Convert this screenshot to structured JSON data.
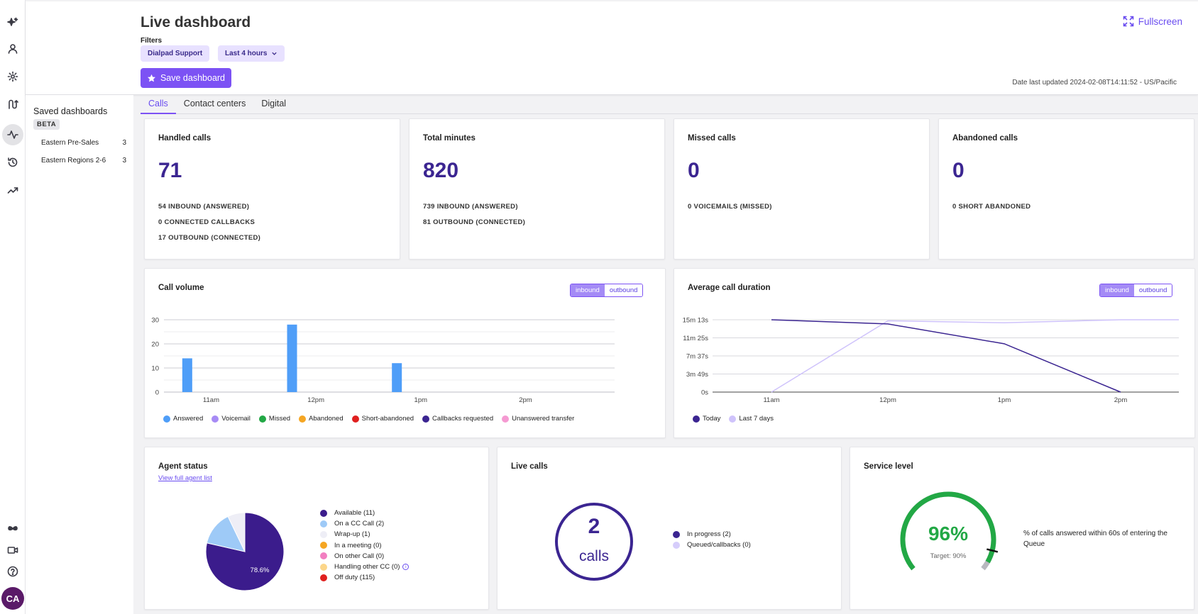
{
  "header": {
    "title": "Live dashboard",
    "filters_label": "Filters",
    "filters": [
      "Dialpad Support",
      "Last 4 hours"
    ],
    "save_label": "Save dashboard",
    "fullscreen_label": "Fullscreen",
    "updated": "Date last updated 2024-02-08T14:11:52 - US/Pacific"
  },
  "rail_icons": [
    "sparkle-icon",
    "person-icon",
    "gear-icon",
    "route-icon",
    "pulse-icon",
    "history-icon",
    "trend-icon",
    "butterfly-icon",
    "video-icon",
    "help-icon"
  ],
  "avatar": "CA",
  "saved": {
    "title": "Saved dashboards",
    "badge": "BETA",
    "items": [
      {
        "label": "Eastern Pre-Sales",
        "count": "3"
      },
      {
        "label": "Eastern Regions 2-6",
        "count": "3"
      }
    ]
  },
  "tabs": [
    "Calls",
    "Contact centers",
    "Digital"
  ],
  "kpis": [
    {
      "title": "Handled calls",
      "value": "71",
      "subs": [
        "54 INBOUND (ANSWERED)",
        "0 CONNECTED CALLBACKS",
        "17 OUTBOUND (CONNECTED)"
      ]
    },
    {
      "title": "Total minutes",
      "value": "820",
      "subs": [
        "739 INBOUND (ANSWERED)",
        "81 OUTBOUND (CONNECTED)"
      ]
    },
    {
      "title": "Missed calls",
      "value": "0",
      "subs": [
        "0 VOICEMAILS (MISSED)"
      ]
    },
    {
      "title": "Abandoned calls",
      "value": "0",
      "subs": [
        "0 SHORT ABANDONED"
      ]
    }
  ],
  "toggle": {
    "inbound": "inbound",
    "outbound": "outbound"
  },
  "colors": {
    "accent": "#7c52f4",
    "navy": "#3b2591",
    "answered": "#4f9ef8",
    "green": "#22a845"
  },
  "chart_data": [
    {
      "type": "bar",
      "title": "Call volume",
      "ylim": [
        0,
        30
      ],
      "yticks": [
        "0",
        "10",
        "20",
        "30"
      ],
      "xticks": [
        "11am",
        "12pm",
        "1pm",
        "2pm"
      ],
      "x": [
        "10:45",
        "11:15",
        "11:45",
        "12:15",
        "12:45",
        "13:15",
        "13:45",
        "14:15"
      ],
      "series": [
        {
          "name": "Answered",
          "color": "#4f9ef8",
          "values": [
            14,
            0,
            28,
            0,
            12,
            0,
            0,
            0
          ]
        },
        {
          "name": "Voicemail",
          "color": "#a78bf5",
          "values": [
            0,
            0,
            0,
            0,
            0,
            0,
            0,
            0
          ]
        },
        {
          "name": "Missed",
          "color": "#22a845",
          "values": [
            0,
            0,
            0,
            0,
            0,
            0,
            0,
            0
          ]
        },
        {
          "name": "Abandoned",
          "color": "#f5a623",
          "values": [
            0,
            0,
            0,
            0,
            0,
            0,
            0,
            0
          ]
        },
        {
          "name": "Short-abandoned",
          "color": "#e0201f",
          "values": [
            0,
            0,
            0,
            0,
            0,
            0,
            0,
            0
          ]
        },
        {
          "name": "Callbacks requested",
          "color": "#3b2591",
          "values": [
            0,
            0,
            0,
            0,
            0,
            0,
            0,
            0
          ]
        },
        {
          "name": "Unanswered transfer",
          "color": "#f59ad2",
          "values": [
            0,
            0,
            0,
            0,
            0,
            0,
            0,
            0
          ]
        }
      ]
    },
    {
      "type": "line",
      "title": "Average call duration",
      "yticks": [
        "0s",
        "3m 49s",
        "7m 37s",
        "11m 25s",
        "15m 13s"
      ],
      "ylim_seconds": [
        0,
        913
      ],
      "x": [
        "11am",
        "12pm",
        "1pm",
        "2pm"
      ],
      "series": [
        {
          "name": "Today",
          "color": "#3b2591",
          "points": [
            [
              "11am",
              913
            ],
            [
              "12pm",
              860
            ],
            [
              "1pm",
              610
            ],
            [
              "2pm",
              0
            ]
          ]
        },
        {
          "name": "Last 7 days",
          "color": "#cfc3fb",
          "points": [
            [
              "11am",
              0
            ],
            [
              "12pm",
              900
            ],
            [
              "1pm",
              875
            ],
            [
              "2pm",
              913
            ]
          ]
        }
      ]
    },
    {
      "type": "pie",
      "title": "Agent status",
      "slices": [
        {
          "name": "Available (11)",
          "value": 11,
          "color": "#3b1c8c"
        },
        {
          "name": "On a CC Call (2)",
          "value": 2,
          "color": "#9ecaf7"
        },
        {
          "name": "Wrap-up (1)",
          "value": 1,
          "color": "#eeeef6"
        },
        {
          "name": "In a meeting (0)",
          "value": 0,
          "color": "#f5a623"
        },
        {
          "name": "On other Call (0)",
          "value": 0,
          "color": "#f27fc1"
        },
        {
          "name": "Handling other CC (0)",
          "value": 0,
          "color": "#fcd68a"
        },
        {
          "name": "Off duty (115)",
          "value": 115,
          "color": "#e0201f"
        }
      ],
      "label": "78.6%"
    }
  ],
  "agent_link": "View full agent list",
  "live_calls": {
    "title": "Live calls",
    "value": "2",
    "unit": "calls",
    "legend": [
      {
        "name": "In progress (2)",
        "color": "#3b2591"
      },
      {
        "name": "Queued/callbacks (0)",
        "color": "#d6cdfb"
      }
    ]
  },
  "service": {
    "title": "Service level",
    "value": "96%",
    "level": 0.96,
    "target_label": "Target: 90%",
    "target": 0.9,
    "description": "% of calls answered within 60s of entering the Queue"
  }
}
